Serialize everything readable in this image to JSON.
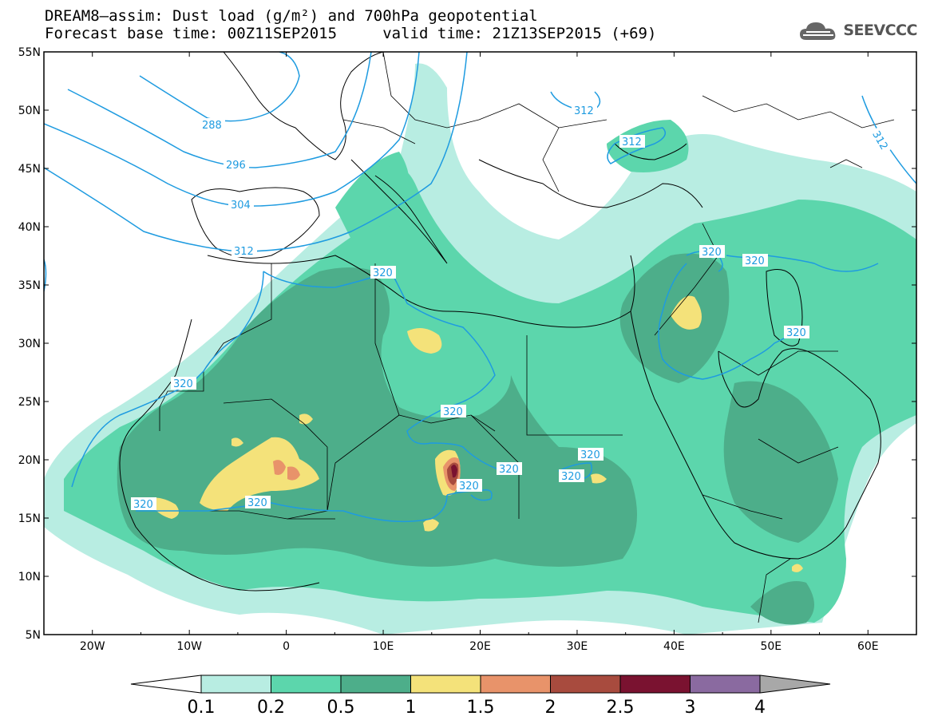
{
  "title_line1": "DREAM8–assim: Dust load (g/m²) and 700hPa geopotential",
  "title_line2": "Forecast base time: 00Z11SEP2015     valid time: 21Z13SEP2015 (+69)",
  "logo_text": "SEEVCCC",
  "map": {
    "lon_labels": [
      "20W",
      "10W",
      "0",
      "10E",
      "20E",
      "30E",
      "40E",
      "50E",
      "60E"
    ],
    "lat_labels": [
      "55N",
      "50N",
      "45N",
      "40N",
      "35N",
      "30N",
      "25N",
      "20N",
      "15N",
      "10N",
      "5N"
    ],
    "lon_range": [
      -25,
      65
    ],
    "lat_range": [
      5,
      55
    ],
    "contour_labels": [
      "288",
      "296",
      "304",
      "312",
      "312",
      "312",
      "312",
      "320",
      "320",
      "320",
      "320",
      "320",
      "320",
      "320",
      "320",
      "320",
      "320",
      "320"
    ]
  },
  "colorbar": {
    "levels": [
      "0.1",
      "0.2",
      "0.5",
      "1",
      "1.5",
      "2",
      "2.5",
      "3",
      "4"
    ],
    "colors": [
      "#b8ede2",
      "#5cd6ac",
      "#4dae8a",
      "#f4e27a",
      "#e8936a",
      "#a84b3e",
      "#7a1230",
      "#8a6aa0",
      "#a8a8a8"
    ]
  },
  "colors": {
    "dust_light": "#b8ede2",
    "dust_mid": "#5cd6ac",
    "dust_dark": "#4dae8a",
    "dust_yellow": "#f4e27a",
    "dust_orange": "#e8936a",
    "dust_brown": "#a84b3e",
    "dust_maroon": "#7a1230",
    "contour": "#1e9be0"
  }
}
